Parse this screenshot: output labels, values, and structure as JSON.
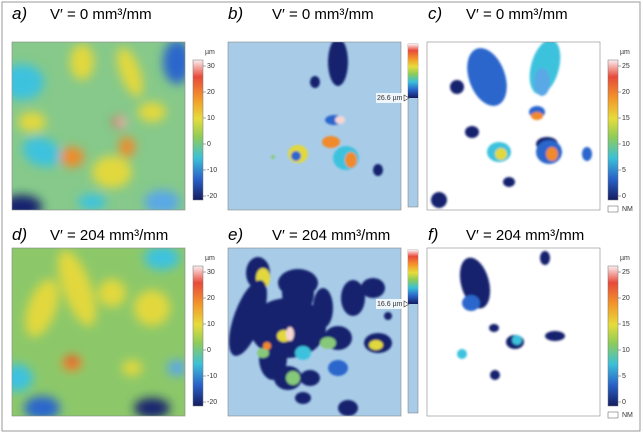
{
  "panels": [
    {
      "label": "a)",
      "title": "V′ = 0 mm³/mm",
      "colorbar": {
        "unit": "µm",
        "ticks": [
          "30",
          "20",
          "10",
          "0",
          "-10",
          "-20"
        ]
      }
    },
    {
      "label": "b)",
      "title": "V′ = 0 mm³/mm",
      "marker": "26.6 µm"
    },
    {
      "label": "c)",
      "title": "V′ = 0 mm³/mm",
      "colorbar": {
        "unit": "µm",
        "ticks": [
          "25",
          "20",
          "15",
          "10",
          "5",
          "0"
        ],
        "legend": "NM"
      }
    },
    {
      "label": "d)",
      "title": "V′ = 204 mm³/mm",
      "colorbar": {
        "unit": "µm",
        "ticks": [
          "30",
          "20",
          "10",
          "0",
          "-10",
          "-20"
        ]
      }
    },
    {
      "label": "e)",
      "title": "V′ = 204 mm³/mm",
      "marker": "16.6 µm"
    },
    {
      "label": "f)",
      "title": "V′ = 204 mm³/mm",
      "colorbar": {
        "unit": "µm",
        "ticks": [
          "25",
          "20",
          "15",
          "10",
          "5",
          "0"
        ],
        "legend": "NM"
      }
    }
  ]
}
